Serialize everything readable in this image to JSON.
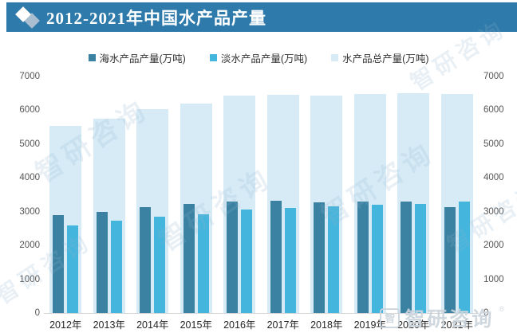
{
  "header": {
    "title": "2012-2021年中国水产品产量",
    "bar_color": "#2d7aab",
    "diamond_icon_front_color": "#ffffff",
    "diamond_icon_back_color": "#a9bfd0"
  },
  "chart_data": {
    "type": "bar",
    "title": "2012-2021年中国水产品产量",
    "unit": "万吨",
    "categories": [
      "2012年",
      "2013年",
      "2014年",
      "2015年",
      "2016年",
      "2017年",
      "2018年",
      "2019年",
      "2020年",
      "2021年"
    ],
    "series": [
      {
        "name": "海水产品产量(万吨)",
        "color": "#3a81a2",
        "role": "overlay-left",
        "values": [
          2900,
          2990,
          3130,
          3230,
          3300,
          3320,
          3270,
          3300,
          3310,
          3130
        ]
      },
      {
        "name": "淡水产品产量(万吨)",
        "color": "#44b5dc",
        "role": "overlay-right",
        "values": [
          2590,
          2730,
          2850,
          2920,
          3060,
          3110,
          3160,
          3210,
          3230,
          3300
        ]
      },
      {
        "name": "水产品总产量(万吨)",
        "color": "#d7ebf7",
        "role": "background",
        "values": [
          5540,
          5760,
          6040,
          6210,
          6440,
          6460,
          6440,
          6480,
          6500,
          6490
        ]
      }
    ],
    "ylim": [
      0,
      7000
    ],
    "yticks": [
      0,
      1000,
      2000,
      3000,
      4000,
      5000,
      6000,
      7000
    ],
    "dual_axis": true,
    "grid": false,
    "legend_position": "top",
    "axis_text_color": "#555555",
    "xlabel": "",
    "ylabel": ""
  },
  "watermark": {
    "brand": "智研咨询",
    "logo_glyph": "智",
    "reg_mark": "®",
    "stamp_text": "智研咨询"
  }
}
